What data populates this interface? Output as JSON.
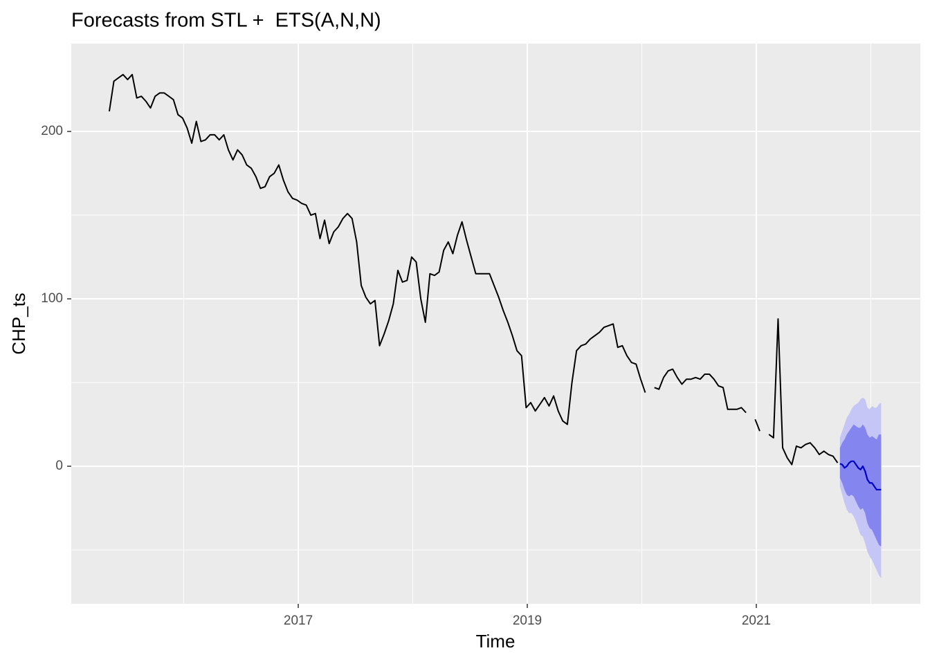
{
  "chart_data": {
    "type": "forecast-line",
    "title": "Forecasts from STL +  ETS(A,N,N)",
    "x_label": "Time",
    "y_label": "CHP_ts",
    "xlim": [
      2015.018,
      2022.432
    ],
    "ylim": [
      -82.2,
      252.5
    ],
    "xticks": [
      2017,
      2019,
      2021
    ],
    "yticks": [
      0,
      100,
      200
    ],
    "x_minor_grid": [
      2016,
      2018,
      2020,
      2022
    ],
    "y_minor_grid": [
      -50,
      50,
      150
    ],
    "grid": true,
    "panel_color": "#ebebeb",
    "color": "#000000",
    "x": [
      2015.35,
      2015.39,
      2015.43,
      2015.47,
      2015.51,
      2015.55,
      2015.59,
      2015.63,
      2015.67,
      2015.71,
      2015.75,
      2015.79,
      2015.83,
      2015.87,
      2015.91,
      2015.95,
      2015.99,
      2016.03,
      2016.07,
      2016.11,
      2016.15,
      2016.19,
      2016.23,
      2016.27,
      2016.31,
      2016.35,
      2016.39,
      2016.43,
      2016.47,
      2016.51,
      2016.55,
      2016.59,
      2016.63,
      2016.67,
      2016.71,
      2016.75,
      2016.79,
      2016.83,
      2016.87,
      2016.91,
      2016.95,
      2016.99,
      2017.03,
      2017.07,
      2017.11,
      2017.15,
      2017.19,
      2017.23,
      2017.27,
      2017.31,
      2017.35,
      2017.39,
      2017.43,
      2017.47,
      2017.51,
      2017.55,
      2017.59,
      2017.63,
      2017.67,
      2017.71,
      2017.75,
      2017.79,
      2017.83,
      2017.87,
      2017.91,
      2017.95,
      2017.99,
      2018.03,
      2018.07,
      2018.11,
      2018.15,
      2018.19,
      2018.23,
      2018.27,
      2018.31,
      2018.35,
      2018.39,
      2018.43,
      2018.47,
      2018.51,
      2018.55,
      2018.59,
      2018.63,
      2018.67,
      2018.71,
      2018.75,
      2018.79,
      2018.83,
      2018.87,
      2018.91,
      2018.95,
      2018.99,
      2019.03,
      2019.07,
      2019.11,
      2019.15,
      2019.19,
      2019.23,
      2019.27,
      2019.31,
      2019.35,
      2019.39,
      2019.43,
      2019.47,
      2019.51,
      2019.55,
      2019.59,
      2019.63,
      2019.67,
      2019.71,
      2019.75,
      2019.79,
      2019.83,
      2019.87,
      2019.91,
      2019.95,
      2019.99,
      2020.03,
      2020.07,
      2020.11,
      2020.15,
      2020.19,
      2020.23,
      2020.27,
      2020.31,
      2020.35,
      2020.39,
      2020.43,
      2020.47,
      2020.51,
      2020.55,
      2020.59,
      2020.63,
      2020.67,
      2020.71,
      2020.75,
      2020.79,
      2020.83,
      2020.87,
      2020.91,
      2020.95,
      2020.99,
      2021.03,
      2021.07,
      2021.11,
      2021.15,
      2021.19,
      2021.23,
      2021.27,
      2021.31,
      2021.35,
      2021.39,
      2021.43,
      2021.47,
      2021.51,
      2021.55,
      2021.59,
      2021.63,
      2021.67,
      2021.71
    ],
    "values": [
      212,
      230,
      232,
      234,
      231,
      234,
      220,
      221,
      218,
      214,
      221,
      223,
      223,
      221,
      219,
      210,
      208,
      202,
      193,
      206,
      194,
      195,
      198,
      198,
      195,
      198,
      189,
      183,
      189,
      186,
      180,
      178,
      173,
      166,
      167,
      173,
      175,
      180,
      171,
      164,
      160,
      159,
      157,
      156,
      150,
      151,
      136,
      147,
      133,
      140,
      143,
      148,
      151,
      148,
      134,
      108,
      101,
      97,
      99,
      72,
      79,
      87,
      97,
      117,
      110,
      111,
      125,
      122,
      100,
      86,
      115,
      114,
      116,
      129,
      134,
      127,
      138,
      146,
      135,
      125,
      115,
      115,
      115,
      115,
      108,
      101,
      93,
      86,
      78,
      69,
      66,
      35,
      38,
      33,
      37,
      41,
      36,
      42,
      33,
      27,
      25,
      50,
      69,
      72,
      73,
      76,
      78,
      80,
      83,
      84,
      85,
      71,
      72,
      66,
      62,
      61,
      52,
      44,
      null,
      47,
      46,
      53,
      57,
      58,
      53,
      49,
      52,
      52,
      53,
      52,
      55,
      55,
      52,
      48,
      47,
      34,
      34,
      34,
      35,
      32,
      null,
      28,
      21,
      null,
      19,
      17,
      88,
      11,
      5,
      1,
      12,
      11,
      13,
      14,
      11,
      7,
      9,
      7,
      6,
      2
    ],
    "forecast": {
      "x": [
        2021.73,
        2021.75,
        2021.77,
        2021.79,
        2021.81,
        2021.83,
        2021.85,
        2021.87,
        2021.89,
        2021.91,
        2021.93,
        2021.95,
        2021.97,
        2021.99,
        2022.01,
        2022.03,
        2022.05,
        2022.07,
        2022.09
      ],
      "mean": [
        1.5,
        1,
        -1,
        0,
        2,
        3,
        3,
        1,
        -1,
        -2,
        0,
        -3,
        -8,
        -10,
        -10,
        -12,
        -14,
        -14,
        -14
      ],
      "lo80": [
        -7,
        -10,
        -14,
        -17,
        -18,
        -17,
        -18,
        -21,
        -24,
        -26,
        -25,
        -28,
        -34,
        -37,
        -38,
        -41,
        -44,
        -47,
        -48
      ],
      "hi80": [
        11,
        14,
        16,
        19,
        21,
        23,
        25,
        24,
        23,
        23,
        25,
        23,
        19,
        17,
        18,
        17,
        16,
        19,
        19
      ],
      "lo95": [
        -12,
        -17,
        -22,
        -26,
        -28,
        -28,
        -30,
        -33,
        -37,
        -41,
        -42,
        -46,
        -51,
        -54,
        -56,
        -59,
        -62,
        -65,
        -67
      ],
      "hi95": [
        17,
        21,
        25,
        29,
        31,
        34,
        36,
        37,
        38,
        40,
        41,
        40,
        35,
        34,
        36,
        35,
        35,
        37,
        38
      ],
      "mean_color": "#0000cc",
      "band80_color": "#8585ef",
      "band95_color": "#c5c5f6"
    }
  }
}
